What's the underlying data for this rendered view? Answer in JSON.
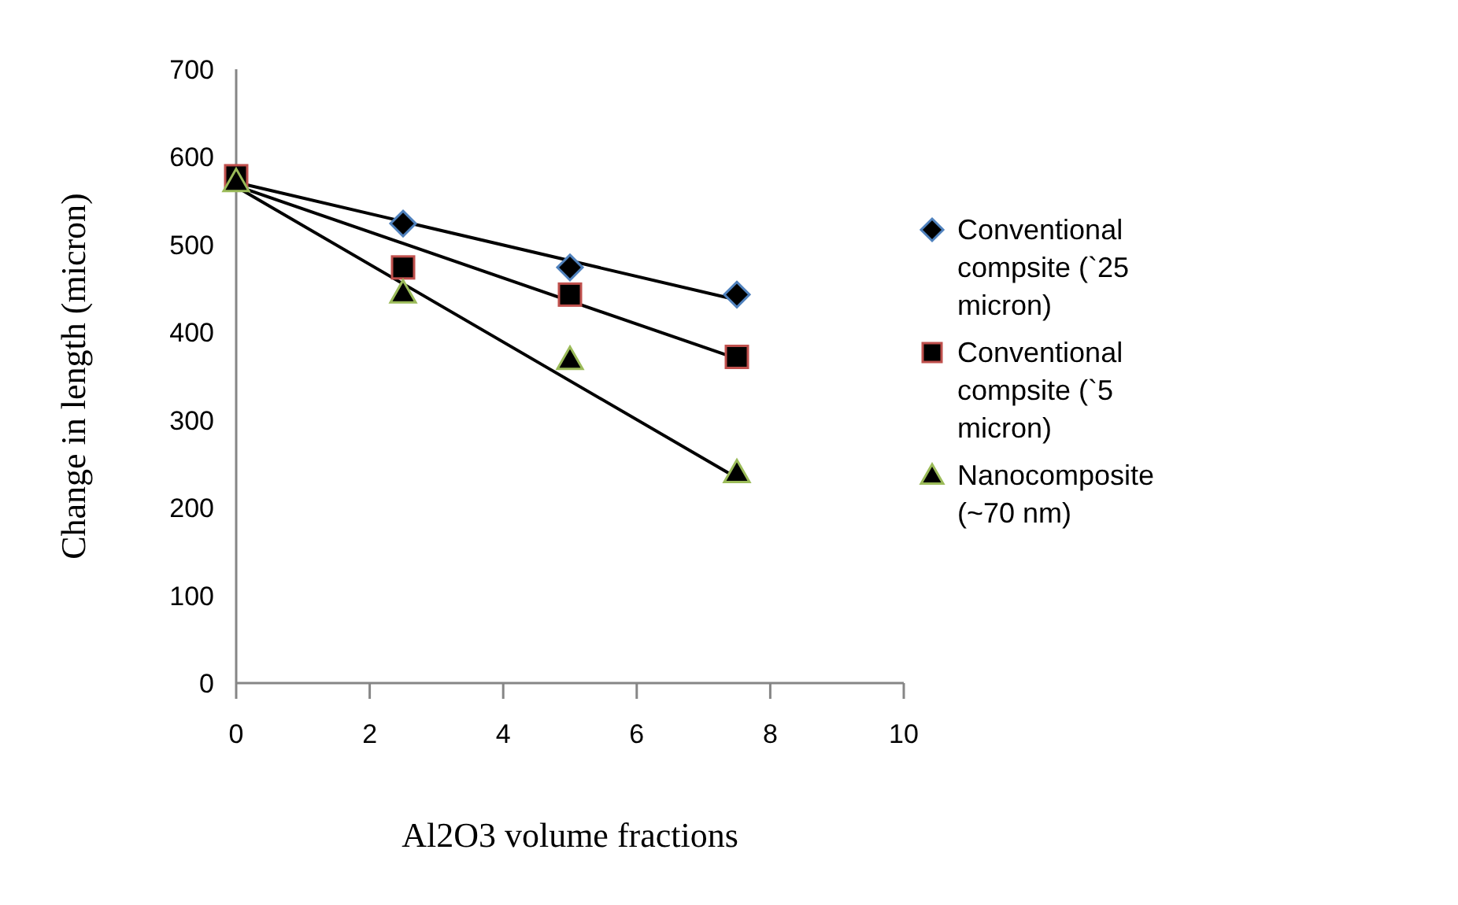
{
  "chart_data": {
    "type": "scatter",
    "xlabel": "Al2O3 volume fractions",
    "ylabel": "Change in length (micron)",
    "xlim": [
      0,
      10
    ],
    "xticks": [
      0,
      2,
      4,
      6,
      8,
      10
    ],
    "ylim": [
      0,
      700
    ],
    "yticks": [
      0,
      100,
      200,
      300,
      400,
      500,
      600,
      700
    ],
    "grid": false,
    "legend": "right",
    "series": [
      {
        "name": "Conventional compsite (`25 micron)",
        "color": "#4f81bd",
        "marker": "diamond",
        "x": [
          2.5,
          5,
          7.5
        ],
        "values": [
          524,
          474,
          443
        ]
      },
      {
        "name": "Conventional compsite (`5 micron)",
        "color": "#c0504d",
        "marker": "square",
        "x": [
          0,
          2.5,
          5,
          7.5
        ],
        "values": [
          578,
          474,
          443,
          372
        ]
      },
      {
        "name": "Nanocomposite (~70 nm)",
        "color": "#9bbb59",
        "marker": "triangle",
        "x": [
          0,
          2.5,
          5,
          7.5
        ],
        "values": [
          572,
          445,
          369,
          240
        ]
      },
      {
        "type": "line",
        "color": "#000000",
        "x": [
          0,
          7.5
        ],
        "values": [
          571,
          437
        ]
      },
      {
        "type": "line",
        "color": "#000000",
        "x": [
          0,
          7.5
        ],
        "values": [
          567,
          370
        ]
      },
      {
        "type": "line",
        "color": "#000000",
        "x": [
          0,
          7.5
        ],
        "values": [
          566,
          234
        ]
      }
    ]
  }
}
